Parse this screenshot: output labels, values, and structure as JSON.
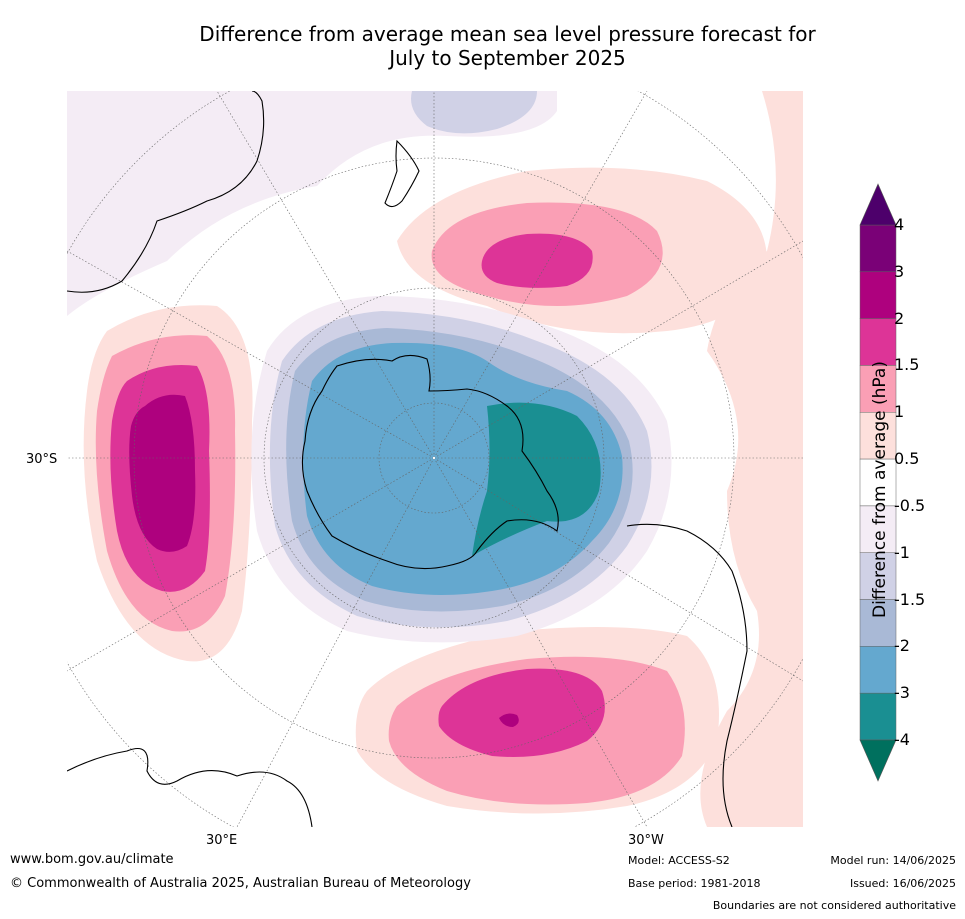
{
  "title_line1": "Difference from average mean sea level pressure forecast for",
  "title_line2": "July to September 2025",
  "map": {
    "lat_labels": {
      "left": "30°S"
    },
    "lon_labels": {
      "bottom_left": "30°E",
      "bottom_right": "30°W"
    },
    "colors": {
      "ocean_bg": "#ffffff",
      "c_m4": "#1a8f92",
      "c_m3": "#64a8cf",
      "c_m2": "#a9b9d6",
      "c_m15": "#d0d1e6",
      "c_m1": "#f4ecf5",
      "c_p05": "#fde0dc",
      "c_p1": "#fa9fb5",
      "c_p15": "#dd3497",
      "c_p2": "#ae017e",
      "c_p3": "#7a0177"
    }
  },
  "colorbar": {
    "title": "Difference from average (hPa)",
    "tick_labels": [
      "4",
      "3",
      "2",
      "1.5",
      "1",
      "0.5",
      "-0.5",
      "-1",
      "-1.5",
      "-2",
      "-3",
      "-4"
    ],
    "bins": [
      "#7a0177",
      "#ae017e",
      "#dd3497",
      "#fa9fb5",
      "#fde0dc",
      "#ffffff",
      "#f4ecf5",
      "#d0d1e6",
      "#a9b9d6",
      "#64a8cf",
      "#1a8f92"
    ],
    "top_extend": "#4d006b",
    "bottom_extend": "#00705e"
  },
  "footer": {
    "website": "www.bom.gov.au/climate",
    "copyright": "© Commonwealth of Australia 2025, Australian Bureau of Meteorology",
    "model": "Model: ACCESS-S2",
    "base_period": "Base period: 1981-2018",
    "model_run": "Model run: 14/06/2025",
    "issued": "Issued: 16/06/2025",
    "disclaimer": "Boundaries are not considered authoritative"
  }
}
